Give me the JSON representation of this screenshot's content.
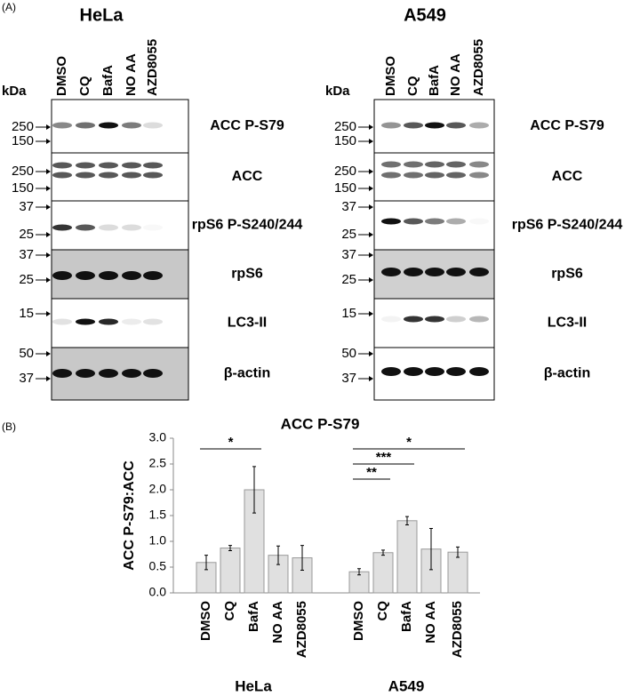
{
  "panel_a": {
    "label": "(A)",
    "kda": "kDa",
    "blots": [
      {
        "cell_line": "HeLa",
        "lanes": [
          "DMSO",
          "CQ",
          "BafA",
          "NO AA",
          "AZD8055"
        ],
        "rows": [
          {
            "antibody": "ACC P-S79",
            "markers": [
              "250",
              "150"
            ]
          },
          {
            "antibody": "ACC",
            "markers": [
              "250",
              "150"
            ]
          },
          {
            "antibody": "rpS6 P-S240/244",
            "markers": [
              "37",
              "25"
            ]
          },
          {
            "antibody": "rpS6",
            "markers": [
              "37",
              "25"
            ]
          },
          {
            "antibody": "LC3-II",
            "markers": [
              "15"
            ]
          },
          {
            "antibody": "β-actin",
            "markers": [
              "50",
              "37"
            ]
          }
        ]
      },
      {
        "cell_line": "A549",
        "lanes": [
          "DMSO",
          "CQ",
          "BafA",
          "NO AA",
          "AZD8055"
        ],
        "rows": [
          {
            "antibody": "ACC P-S79",
            "markers": [
              "250",
              "150"
            ]
          },
          {
            "antibody": "ACC",
            "markers": [
              "250",
              "150"
            ]
          },
          {
            "antibody": "rpS6 P-S240/244",
            "markers": [
              "37",
              "25"
            ]
          },
          {
            "antibody": "rpS6",
            "markers": [
              "37",
              "25"
            ]
          },
          {
            "antibody": "LC3-II",
            "markers": [
              "15"
            ]
          },
          {
            "antibody": "β-actin",
            "markers": [
              "50",
              "37"
            ]
          }
        ]
      }
    ]
  },
  "chart_data": {
    "type": "bar",
    "label": "(B)",
    "title": "ACC P-S79",
    "y_label": "ACC P-S79:ACC",
    "categories": [
      "DMSO",
      "CQ",
      "BafA",
      "NO AA",
      "AZD8055"
    ],
    "color": "#e0e0e0",
    "series": [
      {
        "name": "HeLa",
        "values": [
          0.59,
          0.87,
          2.0,
          0.73,
          0.68
        ],
        "errors": [
          0.14,
          0.05,
          0.45,
          0.18,
          0.24
        ],
        "annotations": [
          {
            "label": "*",
            "span": [
              "DMSO",
              "BafA"
            ]
          }
        ]
      },
      {
        "name": "A549",
        "values": [
          0.41,
          0.78,
          1.4,
          0.85,
          0.79
        ],
        "errors": [
          0.06,
          0.05,
          0.08,
          0.4,
          0.1
        ],
        "annotations": [
          {
            "label": "*",
            "span": [
              "DMSO",
              "AZD8055"
            ]
          },
          {
            "label": "***",
            "span": [
              "DMSO",
              "BafA"
            ]
          },
          {
            "label": "**",
            "span": [
              "DMSO",
              "CQ"
            ]
          }
        ]
      }
    ],
    "ylim": [
      0,
      3
    ],
    "yticks": [
      {
        "value": 0,
        "label": "0.0"
      },
      {
        "value": 0.5,
        "label": "0.5"
      },
      {
        "value": 1,
        "label": "1.0"
      },
      {
        "value": 1.5,
        "label": "1.5"
      },
      {
        "value": 2,
        "label": "2.0"
      },
      {
        "value": 2.5,
        "label": "2.5"
      },
      {
        "value": 3,
        "label": "3.0"
      }
    ]
  }
}
